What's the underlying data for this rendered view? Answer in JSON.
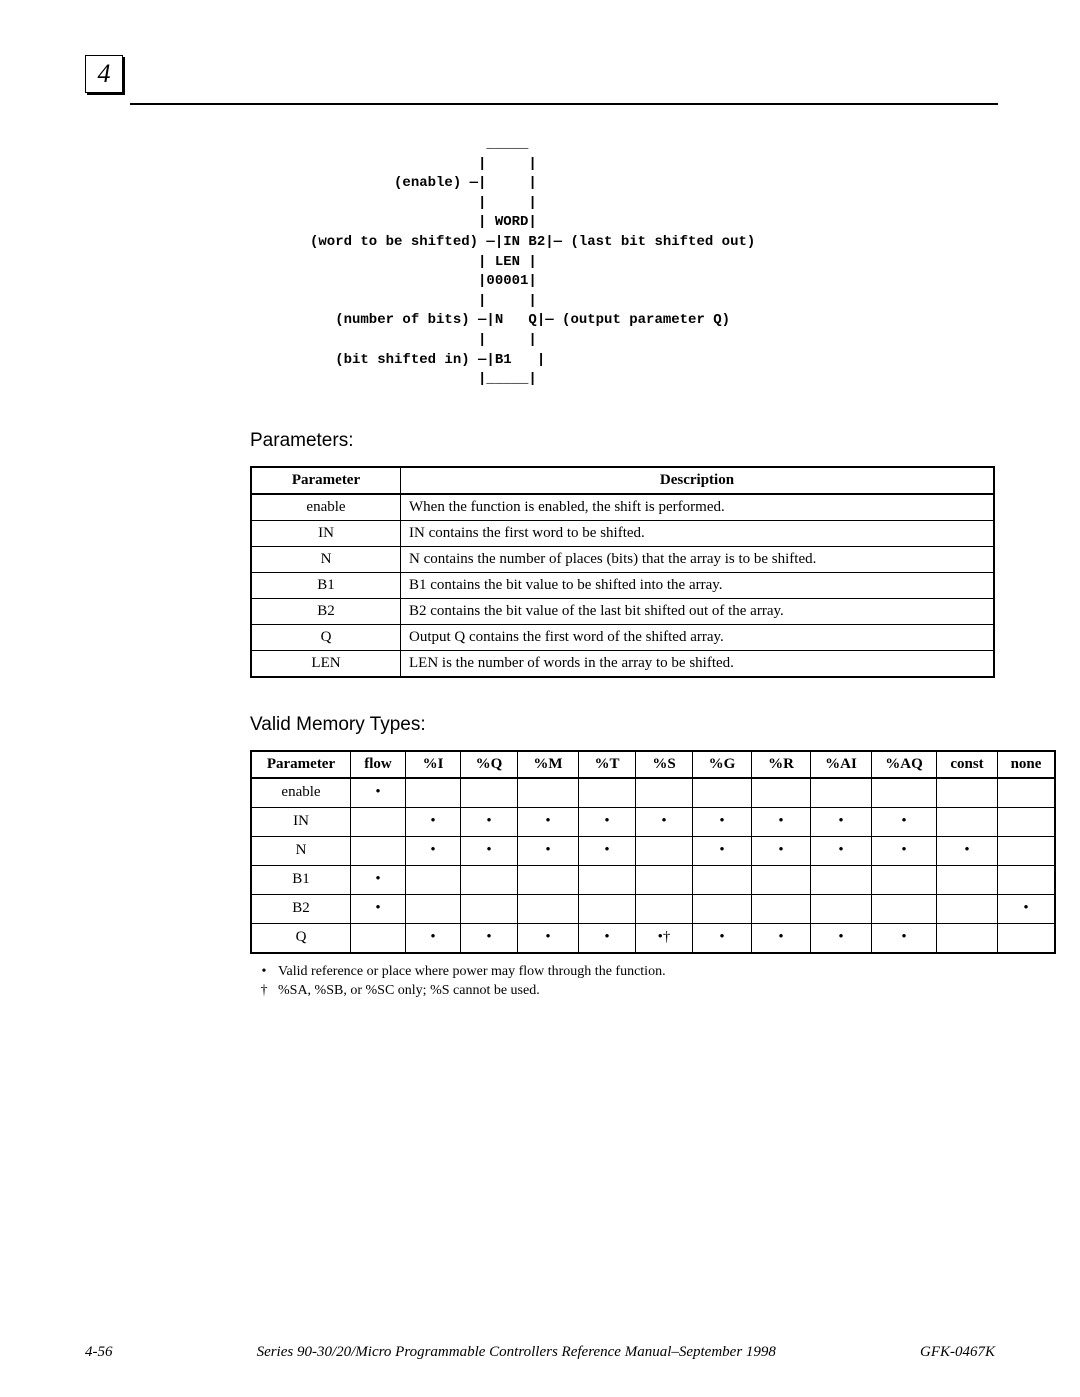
{
  "chapter_number": "4",
  "diagram_text": "                     _____\n                    |     |\n          (enable) —|     |\n                    |     |\n                    | WORD|\n(word to be shifted) —|IN B2|— (last bit shifted out)\n                    | LEN |\n                    |00001|\n                    |     |\n   (number of bits) —|N   Q|— (output parameter Q)\n                    |     |\n   (bit shifted in) —|B1   |\n                    |_____|",
  "headings": {
    "parameters": "Parameters:",
    "memory": "Valid Memory Types:"
  },
  "params_table": {
    "columns": [
      "Parameter",
      "Description"
    ],
    "rows": [
      [
        "enable",
        "When the function is enabled, the shift is performed."
      ],
      [
        "IN",
        "IN contains the first word to be shifted."
      ],
      [
        "N",
        "N contains the number of places (bits) that the array is to be shifted."
      ],
      [
        "B1",
        "B1 contains the bit value to be shifted into the array."
      ],
      [
        "B2",
        "B2 contains the bit value of the last bit shifted out of the array."
      ],
      [
        "Q",
        "Output Q contains the first word of the shifted array."
      ],
      [
        "LEN",
        "LEN is the number of words in the array to be shifted."
      ]
    ]
  },
  "memory_table": {
    "columns": [
      "Parameter",
      "flow",
      "%I",
      "%Q",
      "%M",
      "%T",
      "%S",
      "%G",
      "%R",
      "%AI",
      "%AQ",
      "const",
      "none"
    ],
    "dot": "•",
    "rows": [
      {
        "label": "enable",
        "cells": [
          "•",
          "",
          "",
          "",
          "",
          "",
          "",
          "",
          "",
          "",
          "",
          ""
        ]
      },
      {
        "label": "IN",
        "cells": [
          "",
          "•",
          "•",
          "•",
          "•",
          "•",
          "•",
          "•",
          "•",
          "•",
          "",
          ""
        ]
      },
      {
        "label": "N",
        "cells": [
          "",
          "•",
          "•",
          "•",
          "•",
          "",
          "•",
          "•",
          "•",
          "•",
          "•",
          ""
        ]
      },
      {
        "label": "B1",
        "cells": [
          "•",
          "",
          "",
          "",
          "",
          "",
          "",
          "",
          "",
          "",
          "",
          ""
        ]
      },
      {
        "label": "B2",
        "cells": [
          "•",
          "",
          "",
          "",
          "",
          "",
          "",
          "",
          "",
          "",
          "",
          "•"
        ]
      },
      {
        "label": "Q",
        "cells": [
          "",
          "•",
          "•",
          "•",
          "•",
          "•†",
          "•",
          "•",
          "•",
          "•",
          "",
          ""
        ]
      }
    ],
    "col_widths": [
      "90px",
      "46px",
      "46px",
      "48px",
      "52px",
      "48px",
      "48px",
      "50px",
      "50px",
      "52px",
      "56px",
      "52px",
      "48px"
    ]
  },
  "notes": [
    {
      "symbol": "•",
      "text": "Valid reference or place where power may flow through the function."
    },
    {
      "symbol": "†",
      "text": "%SA, %SB, or %SC only; %S cannot be used."
    }
  ],
  "footer": {
    "left": "4-56",
    "center": "Series 90-30/20/Micro Programmable Controllers Reference Manual–September 1998",
    "right": "GFK-0467K"
  }
}
